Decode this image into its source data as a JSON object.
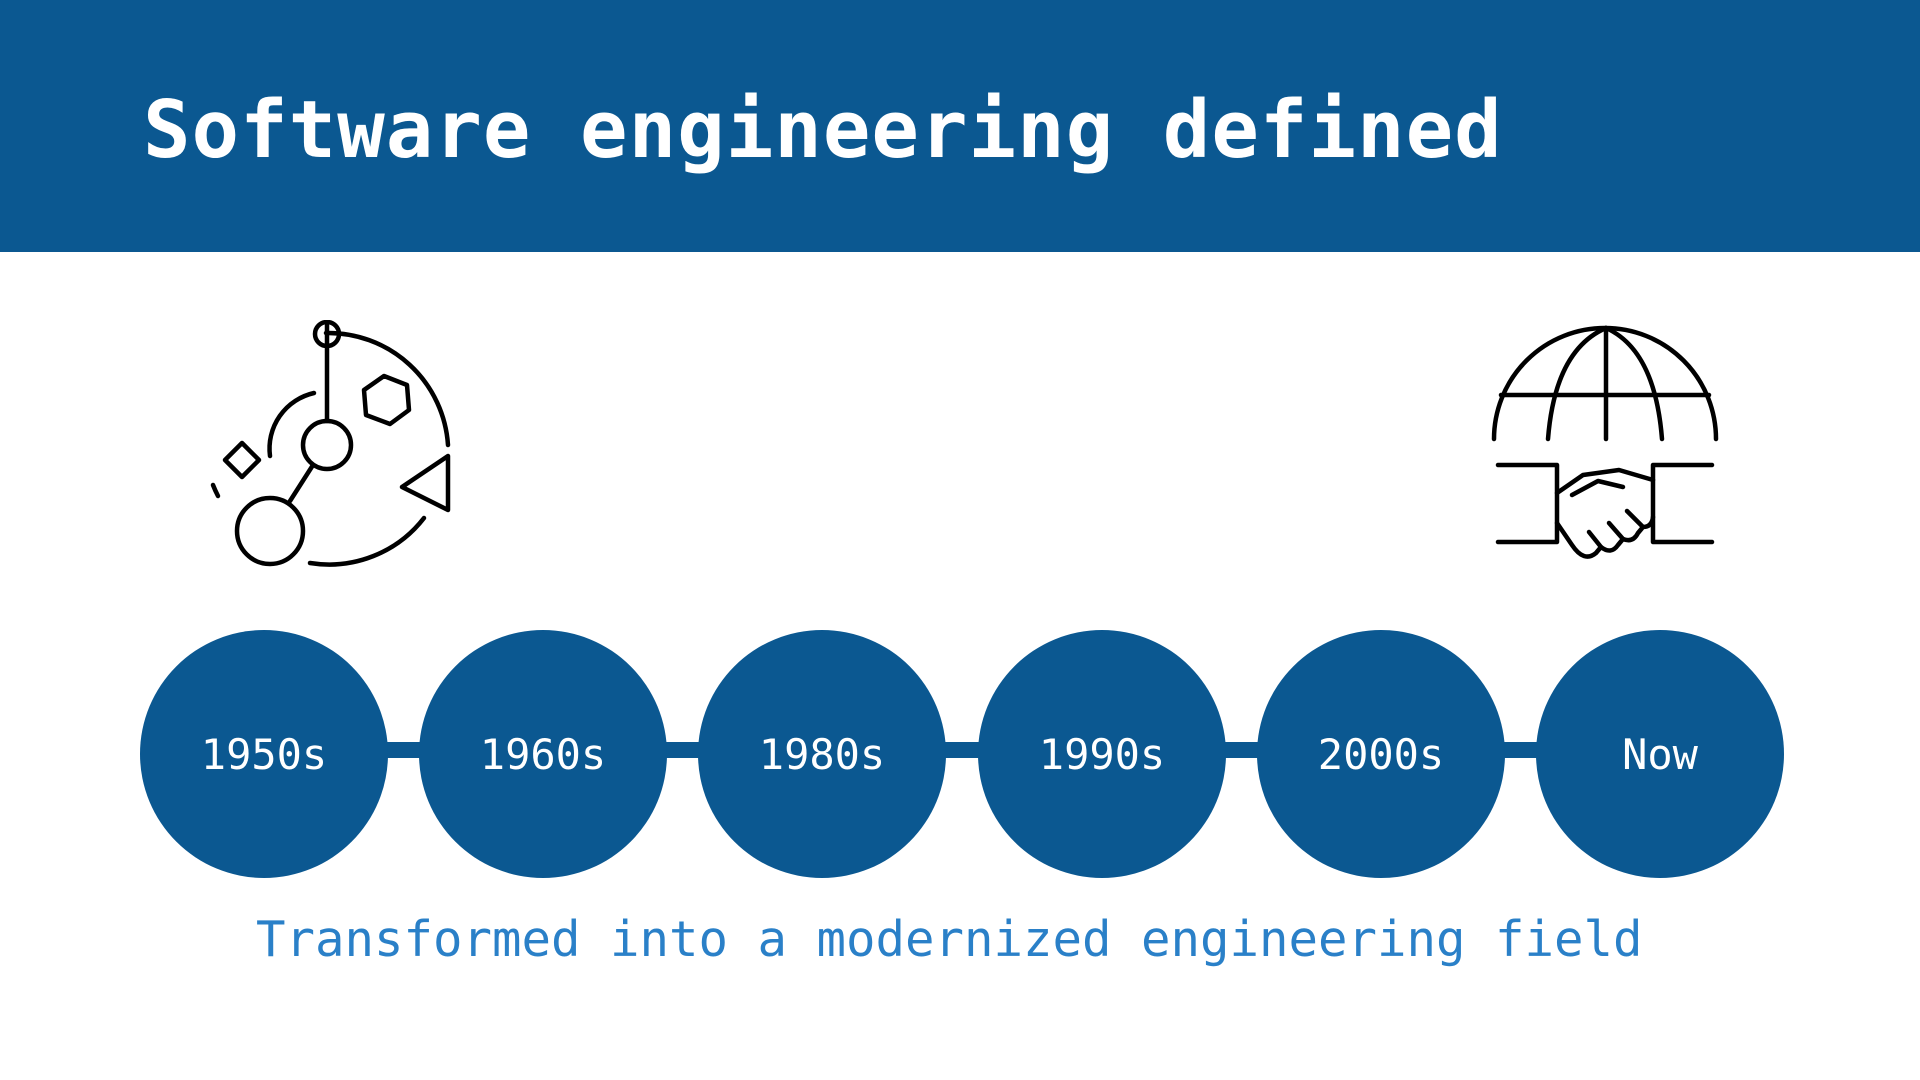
{
  "slide": {
    "title": "Software engineering defined",
    "caption": "Transformed into a modernized engineering field"
  },
  "icons": {
    "left": "molecule-network-icon",
    "right": "globe-handshake-icon"
  },
  "timeline": {
    "eras": [
      "1950s",
      "1960s",
      "1980s",
      "1990s",
      "2000s",
      "Now"
    ]
  },
  "colors": {
    "primary": "#0b5891",
    "caption": "#2a80c8",
    "background": "#ffffff"
  }
}
